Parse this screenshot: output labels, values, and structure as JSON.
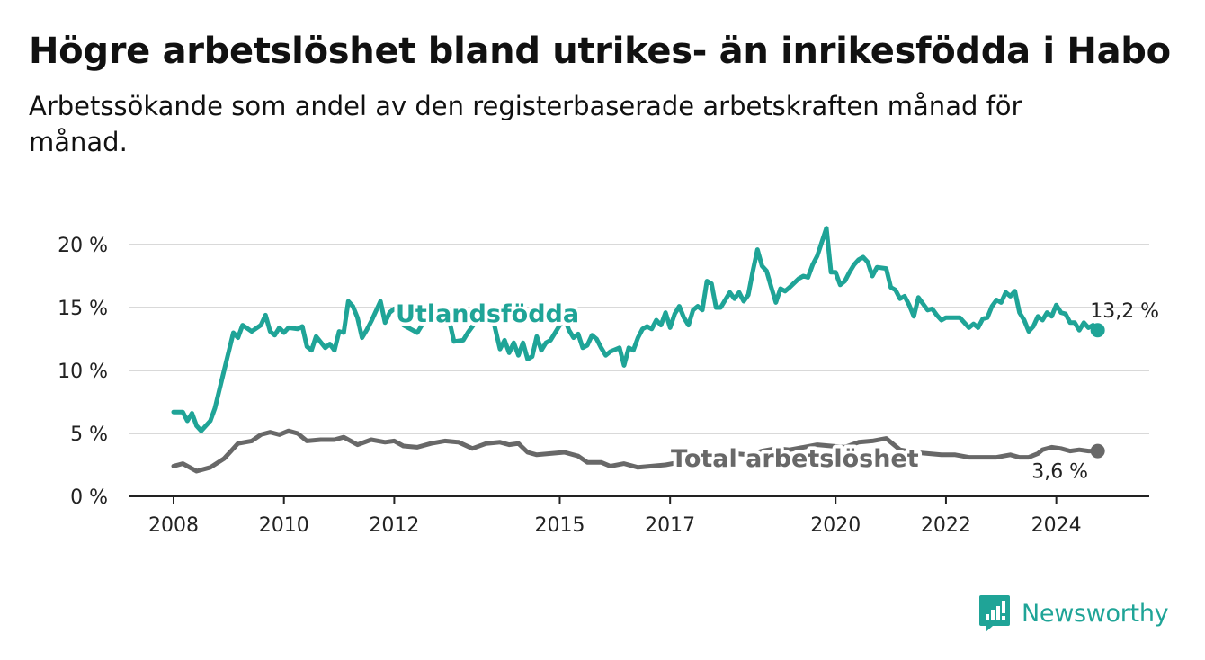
{
  "header": {
    "title": "Högre arbetslöshet bland utrikes- än inrikesfödda i Habo",
    "subtitle": "Arbetssökande som andel av den registerbaserade arbetskraften månad för månad."
  },
  "brand": {
    "name": "Newsworthy",
    "icon": "newsworthy-logo-icon",
    "color": "#1fa497"
  },
  "chart_data": {
    "type": "line",
    "title": "Högre arbetslöshet bland utrikes- än inrikesfödda i Habo",
    "subtitle": "Arbetssökande som andel av den registerbaserade arbetskraften månad för månad.",
    "xlabel": "",
    "ylabel": "",
    "x_range": [
      "2008-01",
      "2025-01"
    ],
    "ylim": [
      0,
      22
    ],
    "y_ticks": [
      0,
      5,
      10,
      15,
      20
    ],
    "y_tick_labels": [
      "0 %",
      "5 %",
      "10 %",
      "15 %",
      "20 %"
    ],
    "x_ticks": [
      2008,
      2010,
      2012,
      2015,
      2017,
      2020,
      2022,
      2024
    ],
    "x_tick_labels": [
      "2008",
      "2010",
      "2012",
      "2015",
      "2017",
      "2020",
      "2022",
      "2024"
    ],
    "grid": "horizontal",
    "series": [
      {
        "name": "Utlandsfödda",
        "color": "#1fa497",
        "end_label": "13,2 %",
        "points": [
          [
            "2008-01",
            6.7
          ],
          [
            "2008-03",
            6.7
          ],
          [
            "2008-04",
            6.0
          ],
          [
            "2008-05",
            6.6
          ],
          [
            "2008-06",
            5.6
          ],
          [
            "2008-07",
            5.2
          ],
          [
            "2008-09",
            6.0
          ],
          [
            "2008-10",
            7.0
          ],
          [
            "2008-12",
            10.0
          ],
          [
            "2009-02",
            13.0
          ],
          [
            "2009-03",
            12.6
          ],
          [
            "2009-04",
            13.6
          ],
          [
            "2009-06",
            13.1
          ],
          [
            "2009-08",
            13.6
          ],
          [
            "2009-09",
            14.4
          ],
          [
            "2009-10",
            13.1
          ],
          [
            "2009-11",
            12.8
          ],
          [
            "2009-12",
            13.4
          ],
          [
            "2010-01",
            13.0
          ],
          [
            "2010-02",
            13.4
          ],
          [
            "2010-04",
            13.3
          ],
          [
            "2010-05",
            13.5
          ],
          [
            "2010-06",
            11.9
          ],
          [
            "2010-07",
            11.6
          ],
          [
            "2010-08",
            12.7
          ],
          [
            "2010-10",
            11.8
          ],
          [
            "2010-11",
            12.1
          ],
          [
            "2010-12",
            11.6
          ],
          [
            "2011-01",
            13.1
          ],
          [
            "2011-02",
            13.0
          ],
          [
            "2011-03",
            15.5
          ],
          [
            "2011-04",
            15.1
          ],
          [
            "2011-05",
            14.2
          ],
          [
            "2011-06",
            12.6
          ],
          [
            "2011-07",
            13.2
          ],
          [
            "2011-08",
            13.9
          ],
          [
            "2011-10",
            15.5
          ],
          [
            "2011-11",
            13.8
          ],
          [
            "2011-12",
            14.6
          ],
          [
            "2012-01",
            14.9
          ],
          [
            "2012-02",
            14.9
          ],
          [
            "2012-03",
            13.6
          ],
          [
            "2012-06",
            13.0
          ],
          [
            "2012-08",
            14.2
          ],
          [
            "2012-11",
            14.2
          ],
          [
            "2013-01",
            13.9
          ],
          [
            "2013-02",
            12.3
          ],
          [
            "2013-04",
            12.4
          ],
          [
            "2013-05",
            13.0
          ],
          [
            "2013-07",
            14.0
          ],
          [
            "2013-10",
            14.8
          ],
          [
            "2013-12",
            11.7
          ],
          [
            "2014-01",
            12.4
          ],
          [
            "2014-02",
            11.4
          ],
          [
            "2014-03",
            12.2
          ],
          [
            "2014-04",
            11.2
          ],
          [
            "2014-05",
            12.2
          ],
          [
            "2014-06",
            10.9
          ],
          [
            "2014-07",
            11.1
          ],
          [
            "2014-08",
            12.7
          ],
          [
            "2014-09",
            11.6
          ],
          [
            "2014-10",
            12.2
          ],
          [
            "2014-11",
            12.4
          ],
          [
            "2015-02",
            14.2
          ],
          [
            "2015-03",
            13.2
          ],
          [
            "2015-04",
            12.6
          ],
          [
            "2015-05",
            12.9
          ],
          [
            "2015-06",
            11.8
          ],
          [
            "2015-07",
            12.0
          ],
          [
            "2015-08",
            12.8
          ],
          [
            "2015-09",
            12.5
          ],
          [
            "2015-10",
            11.8
          ],
          [
            "2015-11",
            11.2
          ],
          [
            "2015-12",
            11.5
          ],
          [
            "2016-02",
            11.8
          ],
          [
            "2016-03",
            10.4
          ],
          [
            "2016-04",
            11.8
          ],
          [
            "2016-05",
            11.6
          ],
          [
            "2016-06",
            12.6
          ],
          [
            "2016-07",
            13.3
          ],
          [
            "2016-08",
            13.5
          ],
          [
            "2016-09",
            13.3
          ],
          [
            "2016-10",
            14.0
          ],
          [
            "2016-11",
            13.6
          ],
          [
            "2016-12",
            14.6
          ],
          [
            "2017-01",
            13.4
          ],
          [
            "2017-02",
            14.5
          ],
          [
            "2017-03",
            15.1
          ],
          [
            "2017-04",
            14.2
          ],
          [
            "2017-05",
            13.6
          ],
          [
            "2017-06",
            14.8
          ],
          [
            "2017-07",
            15.1
          ],
          [
            "2017-08",
            14.8
          ],
          [
            "2017-09",
            17.1
          ],
          [
            "2017-10",
            16.9
          ],
          [
            "2017-11",
            15.0
          ],
          [
            "2017-12",
            15.0
          ],
          [
            "2018-01",
            15.6
          ],
          [
            "2018-02",
            16.2
          ],
          [
            "2018-03",
            15.7
          ],
          [
            "2018-04",
            16.2
          ],
          [
            "2018-05",
            15.5
          ],
          [
            "2018-06",
            16.0
          ],
          [
            "2018-07",
            17.9
          ],
          [
            "2018-08",
            19.6
          ],
          [
            "2018-09",
            18.3
          ],
          [
            "2018-10",
            17.9
          ],
          [
            "2018-11",
            16.6
          ],
          [
            "2018-12",
            15.4
          ],
          [
            "2019-01",
            16.5
          ],
          [
            "2019-02",
            16.3
          ],
          [
            "2019-03",
            16.6
          ],
          [
            "2019-05",
            17.3
          ],
          [
            "2019-06",
            17.5
          ],
          [
            "2019-07",
            17.4
          ],
          [
            "2019-08",
            18.4
          ],
          [
            "2019-09",
            19.1
          ],
          [
            "2019-10",
            20.2
          ],
          [
            "2019-11",
            21.3
          ],
          [
            "2019-12",
            17.8
          ],
          [
            "2020-01",
            17.8
          ],
          [
            "2020-02",
            16.8
          ],
          [
            "2020-03",
            17.1
          ],
          [
            "2020-04",
            17.8
          ],
          [
            "2020-05",
            18.4
          ],
          [
            "2020-06",
            18.8
          ],
          [
            "2020-07",
            19.0
          ],
          [
            "2020-08",
            18.6
          ],
          [
            "2020-09",
            17.5
          ],
          [
            "2020-10",
            18.2
          ],
          [
            "2020-12",
            18.1
          ],
          [
            "2021-01",
            16.6
          ],
          [
            "2021-02",
            16.4
          ],
          [
            "2021-03",
            15.7
          ],
          [
            "2021-04",
            15.9
          ],
          [
            "2021-05",
            15.2
          ],
          [
            "2021-06",
            14.3
          ],
          [
            "2021-07",
            15.8
          ],
          [
            "2021-08",
            15.3
          ],
          [
            "2021-09",
            14.8
          ],
          [
            "2021-10",
            14.9
          ],
          [
            "2021-11",
            14.4
          ],
          [
            "2021-12",
            14.0
          ],
          [
            "2022-01",
            14.2
          ],
          [
            "2022-04",
            14.2
          ],
          [
            "2022-05",
            13.8
          ],
          [
            "2022-06",
            13.4
          ],
          [
            "2022-07",
            13.7
          ],
          [
            "2022-08",
            13.4
          ],
          [
            "2022-09",
            14.1
          ],
          [
            "2022-10",
            14.2
          ],
          [
            "2022-11",
            15.1
          ],
          [
            "2022-12",
            15.6
          ],
          [
            "2023-01",
            15.4
          ],
          [
            "2023-02",
            16.2
          ],
          [
            "2023-03",
            15.9
          ],
          [
            "2023-04",
            16.3
          ],
          [
            "2023-05",
            14.6
          ],
          [
            "2023-06",
            14.0
          ],
          [
            "2023-07",
            13.1
          ],
          [
            "2023-08",
            13.5
          ],
          [
            "2023-09",
            14.3
          ],
          [
            "2023-10",
            14.0
          ],
          [
            "2023-11",
            14.6
          ],
          [
            "2023-12",
            14.3
          ],
          [
            "2024-01",
            15.2
          ],
          [
            "2024-02",
            14.6
          ],
          [
            "2024-03",
            14.5
          ],
          [
            "2024-04",
            13.8
          ],
          [
            "2024-05",
            13.8
          ],
          [
            "2024-06",
            13.2
          ],
          [
            "2024-07",
            13.8
          ],
          [
            "2024-08",
            13.4
          ],
          [
            "2024-09",
            13.6
          ],
          [
            "2024-10",
            13.2
          ]
        ]
      },
      {
        "name": "Total arbetslöshet",
        "color": "#686868",
        "end_label": "3,6 %",
        "points": [
          [
            "2008-01",
            2.4
          ],
          [
            "2008-03",
            2.6
          ],
          [
            "2008-06",
            2.0
          ],
          [
            "2008-09",
            2.3
          ],
          [
            "2008-12",
            3.0
          ],
          [
            "2009-03",
            4.2
          ],
          [
            "2009-06",
            4.4
          ],
          [
            "2009-08",
            4.9
          ],
          [
            "2009-10",
            5.1
          ],
          [
            "2009-12",
            4.9
          ],
          [
            "2010-02",
            5.2
          ],
          [
            "2010-04",
            5.0
          ],
          [
            "2010-06",
            4.4
          ],
          [
            "2010-09",
            4.5
          ],
          [
            "2010-12",
            4.5
          ],
          [
            "2011-02",
            4.7
          ],
          [
            "2011-05",
            4.1
          ],
          [
            "2011-08",
            4.5
          ],
          [
            "2011-11",
            4.3
          ],
          [
            "2012-01",
            4.4
          ],
          [
            "2012-03",
            4.0
          ],
          [
            "2012-06",
            3.9
          ],
          [
            "2012-09",
            4.2
          ],
          [
            "2012-12",
            4.4
          ],
          [
            "2013-03",
            4.3
          ],
          [
            "2013-06",
            3.8
          ],
          [
            "2013-09",
            4.2
          ],
          [
            "2013-12",
            4.3
          ],
          [
            "2014-02",
            4.1
          ],
          [
            "2014-04",
            4.2
          ],
          [
            "2014-06",
            3.5
          ],
          [
            "2014-08",
            3.3
          ],
          [
            "2014-11",
            3.4
          ],
          [
            "2015-02",
            3.5
          ],
          [
            "2015-05",
            3.2
          ],
          [
            "2015-07",
            2.7
          ],
          [
            "2015-10",
            2.7
          ],
          [
            "2015-12",
            2.4
          ],
          [
            "2016-03",
            2.6
          ],
          [
            "2016-06",
            2.3
          ],
          [
            "2016-09",
            2.4
          ],
          [
            "2016-12",
            2.5
          ],
          [
            "2017-03",
            2.7
          ],
          [
            "2017-06",
            2.9
          ],
          [
            "2017-09",
            3.0
          ],
          [
            "2017-12",
            3.2
          ],
          [
            "2018-03",
            3.4
          ],
          [
            "2018-06",
            3.3
          ],
          [
            "2018-09",
            3.6
          ],
          [
            "2018-12",
            3.8
          ],
          [
            "2019-03",
            3.7
          ],
          [
            "2019-06",
            3.9
          ],
          [
            "2019-09",
            4.1
          ],
          [
            "2019-12",
            4.0
          ],
          [
            "2020-03",
            3.9
          ],
          [
            "2020-06",
            4.3
          ],
          [
            "2020-09",
            4.4
          ],
          [
            "2020-12",
            4.6
          ],
          [
            "2021-03",
            3.7
          ],
          [
            "2021-06",
            3.5
          ],
          [
            "2021-09",
            3.4
          ],
          [
            "2021-12",
            3.3
          ],
          [
            "2022-03",
            3.3
          ],
          [
            "2022-06",
            3.1
          ],
          [
            "2022-09",
            3.1
          ],
          [
            "2022-12",
            3.1
          ],
          [
            "2023-03",
            3.3
          ],
          [
            "2023-05",
            3.1
          ],
          [
            "2023-07",
            3.1
          ],
          [
            "2023-09",
            3.4
          ],
          [
            "2023-10",
            3.7
          ],
          [
            "2023-12",
            3.9
          ],
          [
            "2024-02",
            3.8
          ],
          [
            "2024-04",
            3.6
          ],
          [
            "2024-06",
            3.7
          ],
          [
            "2024-08",
            3.6
          ],
          [
            "2024-10",
            3.6
          ]
        ]
      }
    ]
  }
}
